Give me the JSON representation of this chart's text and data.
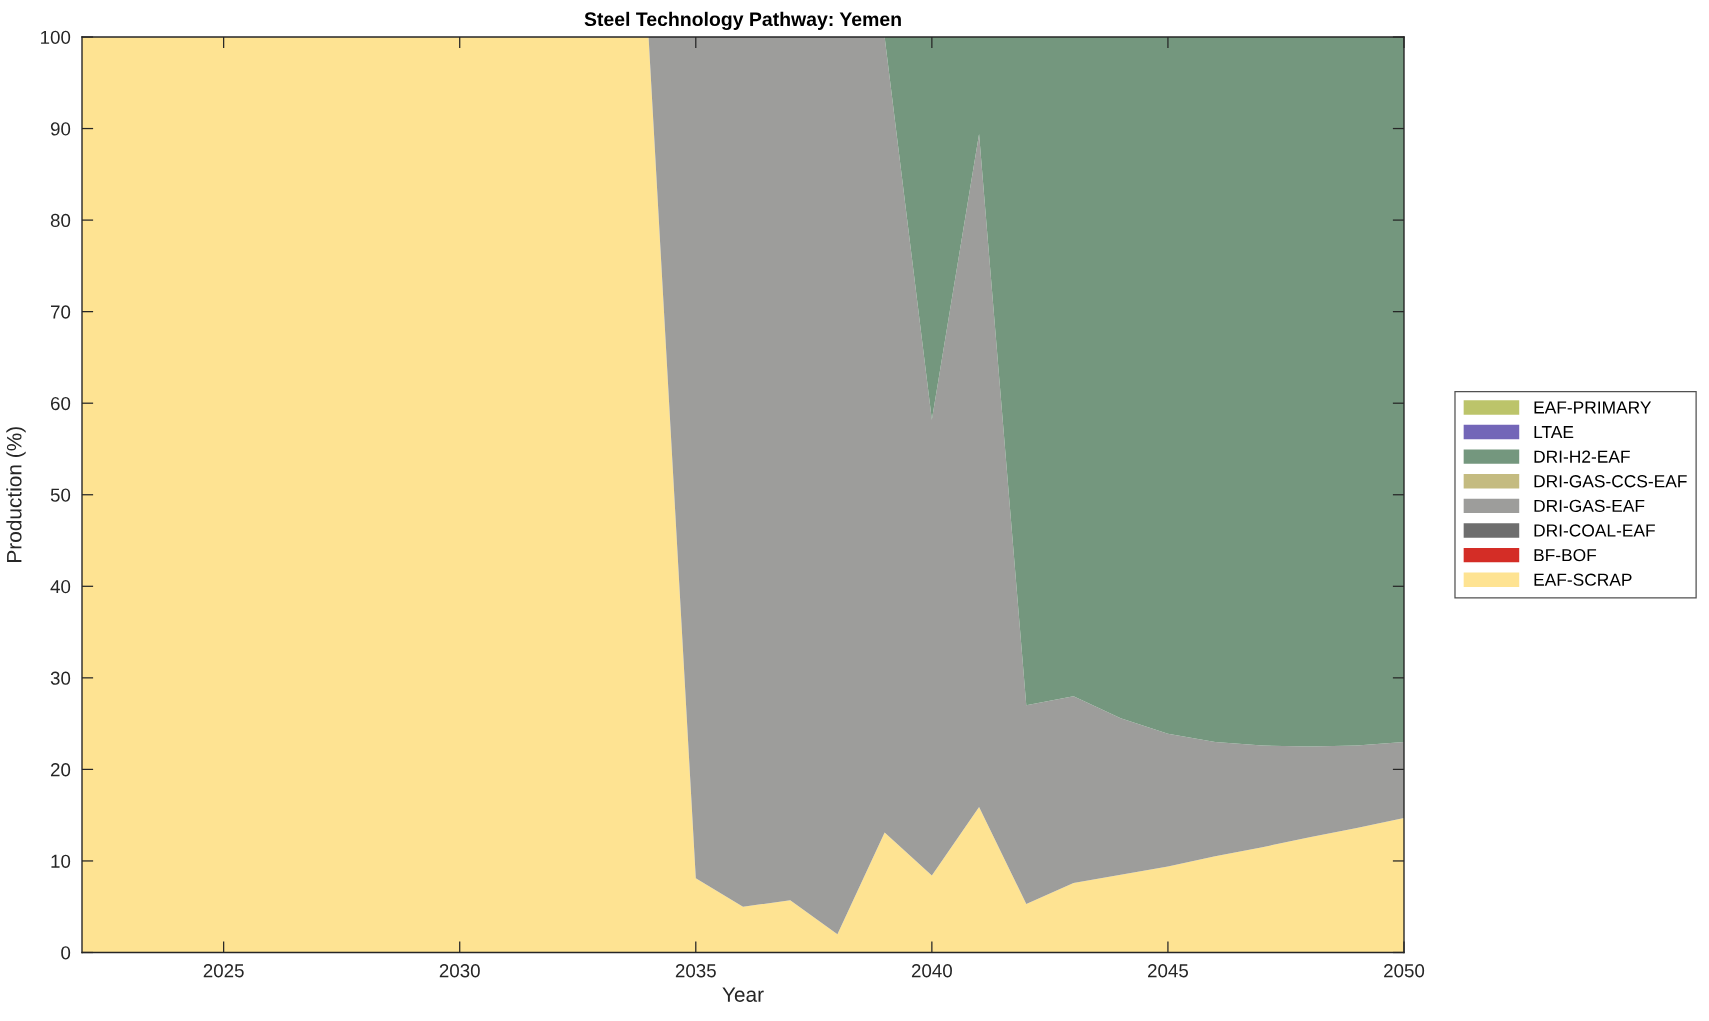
{
  "chart_data": {
    "type": "area",
    "title": "Steel Technology Pathway: Yemen",
    "xlabel": "Year",
    "ylabel": "Production (%)",
    "x": [
      2022,
      2023,
      2024,
      2025,
      2026,
      2027,
      2028,
      2029,
      2030,
      2031,
      2032,
      2033,
      2034,
      2035,
      2036,
      2037,
      2038,
      2039,
      2040,
      2041,
      2042,
      2043,
      2044,
      2045,
      2046,
      2047,
      2048,
      2049,
      2050
    ],
    "stacked": true,
    "legend": "right",
    "xlim": [
      2022,
      2050
    ],
    "xticks": [
      2025,
      2030,
      2035,
      2040,
      2045,
      2050
    ],
    "ylim": [
      0,
      100
    ],
    "yticks": [
      0,
      10,
      20,
      30,
      40,
      50,
      60,
      70,
      80,
      90,
      100
    ],
    "series": [
      {
        "name": "EAF-SCRAP",
        "color": "#fee392",
        "values": [
          100,
          100,
          100,
          100,
          100,
          100,
          100,
          100,
          100,
          100,
          100,
          100,
          100,
          8.1,
          5.0,
          5.7,
          2.0,
          13.1,
          8.4,
          15.9,
          5.3,
          7.6,
          8.5,
          9.4,
          10.5,
          11.5,
          12.6,
          13.6,
          14.7
        ]
      },
      {
        "name": "BF-BOF",
        "color": "#d42d26",
        "values": [
          null,
          null,
          null,
          null,
          null,
          null,
          null,
          null,
          null,
          null,
          null,
          null,
          null,
          null,
          null,
          null,
          null,
          null,
          null,
          null,
          null,
          null,
          null,
          null,
          null,
          null,
          null,
          null,
          null
        ]
      },
      {
        "name": "DRI-COAL-EAF",
        "color": "#6e6e6e",
        "values": [
          null,
          null,
          null,
          null,
          null,
          null,
          null,
          null,
          null,
          null,
          null,
          null,
          null,
          null,
          null,
          null,
          null,
          null,
          null,
          null,
          null,
          null,
          null,
          null,
          null,
          null,
          null,
          null,
          null
        ]
      },
      {
        "name": "DRI-GAS-EAF",
        "color": "#9d9d9b",
        "values": [
          0,
          0,
          0,
          0,
          0,
          0,
          0,
          0,
          0,
          0,
          0,
          0,
          0,
          91.9,
          95.0,
          94.3,
          98.0,
          86.9,
          49.8,
          73.5,
          21.7,
          20.4,
          17.1,
          14.5,
          12.5,
          11.1,
          9.9,
          9.0,
          8.3
        ]
      },
      {
        "name": "DRI-GAS-CCS-EAF",
        "color": "#c4bb80",
        "values": [
          null,
          null,
          null,
          null,
          null,
          null,
          null,
          null,
          null,
          null,
          null,
          null,
          null,
          null,
          null,
          null,
          null,
          null,
          null,
          null,
          null,
          null,
          null,
          null,
          null,
          null,
          null,
          null,
          null
        ]
      },
      {
        "name": "DRI-H2-EAF",
        "color": "#74977e",
        "values": [
          0,
          0,
          0,
          0,
          0,
          0,
          0,
          0,
          0,
          0,
          0,
          0,
          0,
          0,
          0,
          0,
          0,
          0,
          41.8,
          10.6,
          73.0,
          72.0,
          74.4,
          76.1,
          77.0,
          77.4,
          77.5,
          77.4,
          77.0
        ]
      },
      {
        "name": "LTAE",
        "color": "#7366b8",
        "values": [
          null,
          null,
          null,
          null,
          null,
          null,
          null,
          null,
          null,
          null,
          null,
          null,
          null,
          null,
          null,
          null,
          null,
          null,
          null,
          null,
          null,
          null,
          null,
          null,
          null,
          null,
          null,
          null,
          null
        ]
      },
      {
        "name": "EAF-PRIMARY",
        "color": "#bcc46a",
        "values": [
          null,
          null,
          null,
          null,
          null,
          null,
          null,
          null,
          null,
          null,
          null,
          null,
          null,
          null,
          null,
          null,
          null,
          null,
          null,
          null,
          null,
          null,
          null,
          null,
          null,
          null,
          null,
          null,
          null
        ]
      }
    ]
  }
}
